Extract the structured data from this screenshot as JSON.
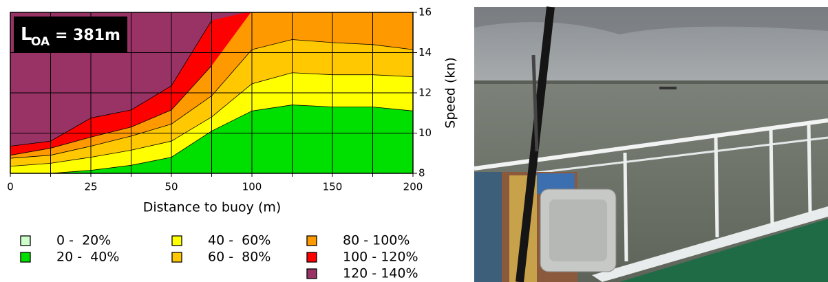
{
  "chart_data": {
    "type": "contour-bands",
    "annotation": {
      "main": "L",
      "sub": "OA",
      "value": "= 381m"
    },
    "xlabel": "Distance to buoy (m)",
    "ylabel": "Speed (kn)",
    "categories": [
      "0",
      null,
      "25",
      null,
      "50",
      null,
      "100",
      null,
      "150",
      null,
      "200"
    ],
    "ylim": [
      8,
      16
    ],
    "yticks": [
      8,
      10,
      12,
      14,
      16
    ],
    "grid": true,
    "series": [
      {
        "name": "0 -  20%",
        "color": "#ccffcc",
        "values": [
          8,
          8,
          8,
          8,
          8,
          8,
          8,
          8,
          8,
          8,
          8
        ]
      },
      {
        "name": "20 -  40%",
        "color": "#00e000",
        "values": [
          8,
          8,
          8.15,
          8.4,
          8.8,
          10.1,
          11.1,
          11.4,
          11.3,
          11.3,
          11.1
        ]
      },
      {
        "name": "40 -  60%",
        "color": "#ffff00",
        "values": [
          8.35,
          8.5,
          8.8,
          9.15,
          9.6,
          10.8,
          12.45,
          13,
          12.9,
          12.9,
          12.8
        ]
      },
      {
        "name": "60 -  80%",
        "color": "#ffc800",
        "values": [
          8.75,
          8.9,
          9.35,
          9.85,
          10.45,
          11.85,
          14.15,
          14.65,
          14.5,
          14.4,
          14.15
        ]
      },
      {
        "name": "80 - 100%",
        "color": "#ff9900",
        "values": [
          8.9,
          9.25,
          9.8,
          10.3,
          11.15,
          13.35,
          null,
          null,
          null,
          null,
          null
        ]
      },
      {
        "name": "100 - 120%",
        "color": "#ff0000",
        "values": [
          9.35,
          9.6,
          10.75,
          11.15,
          12.35,
          15.6,
          null,
          null,
          null,
          null,
          null
        ]
      },
      {
        "name": "120 - 140%",
        "color": "#993366",
        "values": [
          16,
          16,
          16,
          16,
          16,
          16,
          16,
          16,
          16,
          16,
          16
        ]
      }
    ]
  }
}
